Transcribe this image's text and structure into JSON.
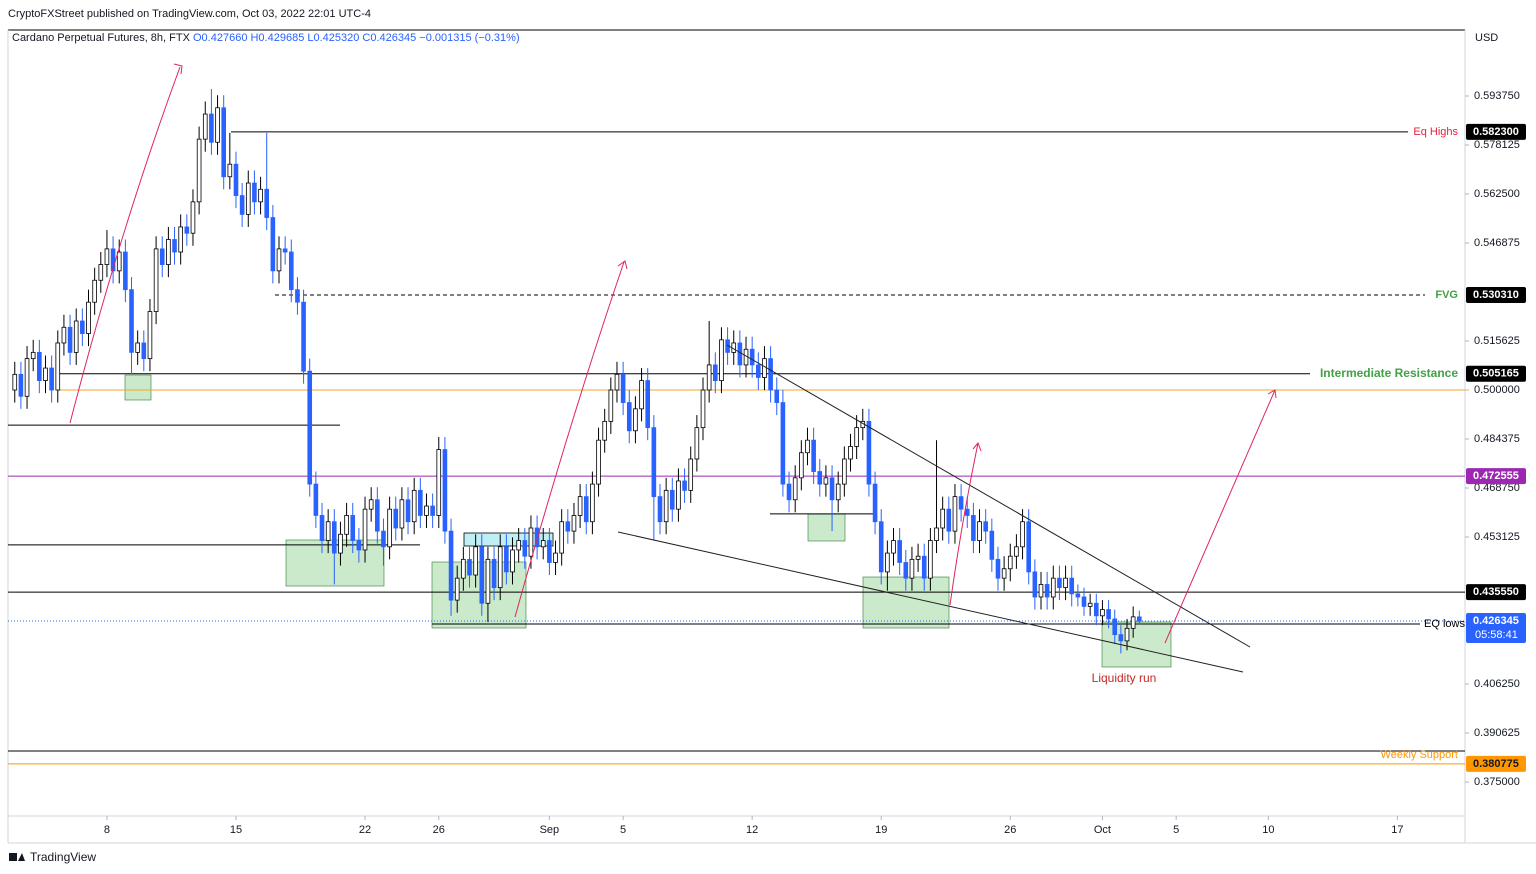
{
  "chart_data": {
    "type": "candlestick",
    "attribution": "CryptoFXStreet published on TradingView.com, Oct 03, 2022 22:01 UTC-4",
    "symbol": "Cardano Perpetual Futures, 8h, FTX",
    "legend_values": "O0.427660 H0.429685 L0.425320 C0.426345 −0.001315 (−0.31%)",
    "currency": "USD",
    "brand": "TradingView",
    "up_color": "#ffffff",
    "down_color": "#2962ff",
    "wick_color": "#000000",
    "xlim": [
      -1.1,
      236
    ],
    "xticks": [
      {
        "value": 15,
        "label": "8"
      },
      {
        "value": 36,
        "label": "15"
      },
      {
        "value": 57,
        "label": "22"
      },
      {
        "value": 69,
        "label": "26"
      },
      {
        "value": 87,
        "label": "Sep"
      },
      {
        "value": 99,
        "label": "5"
      },
      {
        "value": 120,
        "label": "12"
      },
      {
        "value": 141,
        "label": "19"
      },
      {
        "value": 162,
        "label": "26"
      },
      {
        "value": 177,
        "label": "Oct"
      },
      {
        "value": 189,
        "label": "5"
      },
      {
        "value": 204,
        "label": "10"
      },
      {
        "value": 225,
        "label": "17"
      }
    ],
    "ylim": [
      0.36416,
      0.6148
    ],
    "yticks": [
      {
        "value": 0.59375,
        "label": "0.593750"
      },
      {
        "value": 0.578125,
        "label": "0.578125"
      },
      {
        "value": 0.5625,
        "label": "0.562500"
      },
      {
        "value": 0.546875,
        "label": "0.546875"
      },
      {
        "value": 0.515625,
        "label": "0.515625"
      },
      {
        "value": 0.5,
        "label": "0.500000"
      },
      {
        "value": 0.484375,
        "label": "0.484375"
      },
      {
        "value": 0.46875,
        "label": "0.468750"
      },
      {
        "value": 0.453125,
        "label": "0.453125"
      },
      {
        "value": 0.40625,
        "label": "0.406250"
      },
      {
        "value": 0.390625,
        "label": "0.390625"
      },
      {
        "value": 0.375,
        "label": "0.375000"
      }
    ],
    "levels": [
      {
        "value": 0.5823,
        "label": "0.582300",
        "text": "Eq Highs",
        "color": "#000000",
        "text_color": "#e91e3a"
      },
      {
        "value": 0.53031,
        "label": "0.530310",
        "text": "FVG",
        "color": "#000000",
        "text_color": "#43a047",
        "dashed": true
      },
      {
        "value": 0.505165,
        "badge": true,
        "text": "Intermediate Resistance",
        "color": "#000000",
        "text_color": "#43a047"
      },
      {
        "value": 0.5,
        "color": "#f5a623"
      },
      {
        "value": 0.472555,
        "badge": true,
        "color": "#9c27b0"
      },
      {
        "value": 0.43555,
        "label": "0.435550",
        "color": "#000000"
      },
      {
        "value": 0.380775,
        "badge": true,
        "text": "Weekly Support",
        "color": "#ff9800",
        "text_color": "#ff9800"
      },
      {
        "value": 0.3849,
        "color": "#000000"
      },
      {
        "value": 0.4888,
        "color": "#000000"
      },
      {
        "value": 0.4506,
        "color": "#000000"
      },
      {
        "value": 0.4605,
        "color": "#000000"
      },
      {
        "value": 0.4254,
        "text": "EQ lows",
        "color": "#000000",
        "text_color": "#000000"
      }
    ],
    "last_price": {
      "value": 0.426345,
      "countdown": "05:58:41",
      "color": "#2962ff"
    },
    "annotation": "Liquidity run",
    "candles": [
      [
        0.5,
        0.509,
        0.496,
        0.505
      ],
      [
        0.505,
        0.509,
        0.494,
        0.498
      ],
      [
        0.498,
        0.514,
        0.494,
        0.51
      ],
      [
        0.51,
        0.516,
        0.506,
        0.512
      ],
      [
        0.512,
        0.516,
        0.499,
        0.503
      ],
      [
        0.503,
        0.511,
        0.499,
        0.507
      ],
      [
        0.507,
        0.511,
        0.496,
        0.5
      ],
      [
        0.5,
        0.519,
        0.496,
        0.515
      ],
      [
        0.515,
        0.524,
        0.511,
        0.52
      ],
      [
        0.52,
        0.524,
        0.508,
        0.512
      ],
      [
        0.512,
        0.526,
        0.508,
        0.522
      ],
      [
        0.522,
        0.526,
        0.514,
        0.518
      ],
      [
        0.518,
        0.532,
        0.514,
        0.528
      ],
      [
        0.528,
        0.539,
        0.524,
        0.535
      ],
      [
        0.535,
        0.544,
        0.531,
        0.54
      ],
      [
        0.54,
        0.551,
        0.536,
        0.545
      ],
      [
        0.545,
        0.549,
        0.534,
        0.538
      ],
      [
        0.538,
        0.548,
        0.534,
        0.544
      ],
      [
        0.544,
        0.548,
        0.528,
        0.532
      ],
      [
        0.532,
        0.536,
        0.505,
        0.512
      ],
      [
        0.512,
        0.519,
        0.508,
        0.515
      ],
      [
        0.515,
        0.519,
        0.506,
        0.51
      ],
      [
        0.51,
        0.529,
        0.506,
        0.525
      ],
      [
        0.525,
        0.549,
        0.521,
        0.545
      ],
      [
        0.545,
        0.549,
        0.536,
        0.54
      ],
      [
        0.54,
        0.552,
        0.536,
        0.548
      ],
      [
        0.548,
        0.552,
        0.54,
        0.544
      ],
      [
        0.544,
        0.556,
        0.54,
        0.552
      ],
      [
        0.552,
        0.556,
        0.546,
        0.55
      ],
      [
        0.55,
        0.564,
        0.546,
        0.56
      ],
      [
        0.56,
        0.584,
        0.556,
        0.58
      ],
      [
        0.58,
        0.592,
        0.576,
        0.588
      ],
      [
        0.588,
        0.596,
        0.575,
        0.579
      ],
      [
        0.579,
        0.594,
        0.575,
        0.59
      ],
      [
        0.59,
        0.594,
        0.564,
        0.568
      ],
      [
        0.568,
        0.582,
        0.564,
        0.572
      ],
      [
        0.572,
        0.576,
        0.558,
        0.562
      ],
      [
        0.562,
        0.566,
        0.552,
        0.556
      ],
      [
        0.556,
        0.57,
        0.552,
        0.566
      ],
      [
        0.566,
        0.57,
        0.556,
        0.56
      ],
      [
        0.56,
        0.568,
        0.556,
        0.564
      ],
      [
        0.564,
        0.582,
        0.551,
        0.555
      ],
      [
        0.555,
        0.559,
        0.534,
        0.538
      ],
      [
        0.538,
        0.549,
        0.534,
        0.545
      ],
      [
        0.545,
        0.549,
        0.54,
        0.544
      ],
      [
        0.544,
        0.548,
        0.528,
        0.532
      ],
      [
        0.532,
        0.536,
        0.524,
        0.528
      ],
      [
        0.528,
        0.532,
        0.502,
        0.506
      ],
      [
        0.506,
        0.51,
        0.466,
        0.47
      ],
      [
        0.47,
        0.474,
        0.456,
        0.46
      ],
      [
        0.46,
        0.464,
        0.448,
        0.452
      ],
      [
        0.452,
        0.462,
        0.448,
        0.458
      ],
      [
        0.458,
        0.462,
        0.438,
        0.448
      ],
      [
        0.448,
        0.458,
        0.444,
        0.454
      ],
      [
        0.454,
        0.464,
        0.45,
        0.46
      ],
      [
        0.46,
        0.464,
        0.448,
        0.452
      ],
      [
        0.452,
        0.456,
        0.445,
        0.449
      ],
      [
        0.449,
        0.466,
        0.445,
        0.462
      ],
      [
        0.462,
        0.469,
        0.458,
        0.465
      ],
      [
        0.465,
        0.469,
        0.451,
        0.455
      ],
      [
        0.455,
        0.459,
        0.444,
        0.45
      ],
      [
        0.45,
        0.466,
        0.446,
        0.462
      ],
      [
        0.462,
        0.466,
        0.452,
        0.456
      ],
      [
        0.456,
        0.469,
        0.452,
        0.465
      ],
      [
        0.465,
        0.469,
        0.454,
        0.458
      ],
      [
        0.458,
        0.472,
        0.454,
        0.468
      ],
      [
        0.468,
        0.472,
        0.456,
        0.46
      ],
      [
        0.46,
        0.467,
        0.456,
        0.463
      ],
      [
        0.463,
        0.467,
        0.456,
        0.46
      ],
      [
        0.46,
        0.485,
        0.456,
        0.481
      ],
      [
        0.481,
        0.485,
        0.451,
        0.455
      ],
      [
        0.455,
        0.459,
        0.428,
        0.433
      ],
      [
        0.433,
        0.444,
        0.429,
        0.44
      ],
      [
        0.44,
        0.45,
        0.436,
        0.446
      ],
      [
        0.446,
        0.45,
        0.437,
        0.441
      ],
      [
        0.441,
        0.454,
        0.437,
        0.45
      ],
      [
        0.45,
        0.454,
        0.428,
        0.432
      ],
      [
        0.432,
        0.45,
        0.426,
        0.446
      ],
      [
        0.446,
        0.45,
        0.433,
        0.437
      ],
      [
        0.437,
        0.454,
        0.433,
        0.45
      ],
      [
        0.45,
        0.454,
        0.438,
        0.442
      ],
      [
        0.442,
        0.453,
        0.438,
        0.449
      ],
      [
        0.449,
        0.456,
        0.445,
        0.452
      ],
      [
        0.452,
        0.456,
        0.443,
        0.447
      ],
      [
        0.447,
        0.46,
        0.443,
        0.456
      ],
      [
        0.456,
        0.46,
        0.446,
        0.45
      ],
      [
        0.45,
        0.456,
        0.446,
        0.452
      ],
      [
        0.452,
        0.456,
        0.441,
        0.445
      ],
      [
        0.445,
        0.452,
        0.441,
        0.448
      ],
      [
        0.448,
        0.462,
        0.444,
        0.458
      ],
      [
        0.458,
        0.462,
        0.451,
        0.455
      ],
      [
        0.455,
        0.464,
        0.451,
        0.46
      ],
      [
        0.46,
        0.47,
        0.456,
        0.466
      ],
      [
        0.466,
        0.47,
        0.454,
        0.458
      ],
      [
        0.458,
        0.474,
        0.454,
        0.47
      ],
      [
        0.47,
        0.488,
        0.466,
        0.484
      ],
      [
        0.484,
        0.494,
        0.48,
        0.49
      ],
      [
        0.49,
        0.504,
        0.486,
        0.5
      ],
      [
        0.5,
        0.509,
        0.496,
        0.505
      ],
      [
        0.505,
        0.509,
        0.492,
        0.496
      ],
      [
        0.496,
        0.5,
        0.483,
        0.487
      ],
      [
        0.487,
        0.498,
        0.483,
        0.494
      ],
      [
        0.494,
        0.507,
        0.49,
        0.503
      ],
      [
        0.503,
        0.507,
        0.484,
        0.488
      ],
      [
        0.488,
        0.492,
        0.452,
        0.466
      ],
      [
        0.466,
        0.47,
        0.454,
        0.458
      ],
      [
        0.458,
        0.472,
        0.454,
        0.468
      ],
      [
        0.468,
        0.472,
        0.458,
        0.462
      ],
      [
        0.462,
        0.475,
        0.458,
        0.471
      ],
      [
        0.471,
        0.475,
        0.464,
        0.468
      ],
      [
        0.468,
        0.482,
        0.464,
        0.478
      ],
      [
        0.478,
        0.492,
        0.474,
        0.488
      ],
      [
        0.488,
        0.504,
        0.484,
        0.5
      ],
      [
        0.5,
        0.522,
        0.496,
        0.508
      ],
      [
        0.508,
        0.512,
        0.499,
        0.503
      ],
      [
        0.503,
        0.52,
        0.499,
        0.516
      ],
      [
        0.516,
        0.52,
        0.508,
        0.512
      ],
      [
        0.512,
        0.519,
        0.508,
        0.515
      ],
      [
        0.515,
        0.519,
        0.504,
        0.508
      ],
      [
        0.508,
        0.517,
        0.504,
        0.513
      ],
      [
        0.513,
        0.517,
        0.504,
        0.508
      ],
      [
        0.508,
        0.512,
        0.5,
        0.504
      ],
      [
        0.504,
        0.514,
        0.5,
        0.51
      ],
      [
        0.51,
        0.514,
        0.496,
        0.5
      ],
      [
        0.5,
        0.504,
        0.492,
        0.496
      ],
      [
        0.496,
        0.5,
        0.466,
        0.47
      ],
      [
        0.47,
        0.474,
        0.461,
        0.465
      ],
      [
        0.465,
        0.476,
        0.461,
        0.472
      ],
      [
        0.472,
        0.484,
        0.468,
        0.48
      ],
      [
        0.48,
        0.488,
        0.476,
        0.484
      ],
      [
        0.484,
        0.488,
        0.47,
        0.474
      ],
      [
        0.474,
        0.478,
        0.466,
        0.47
      ],
      [
        0.47,
        0.476,
        0.466,
        0.472
      ],
      [
        0.472,
        0.476,
        0.455,
        0.465
      ],
      [
        0.465,
        0.474,
        0.461,
        0.47
      ],
      [
        0.47,
        0.482,
        0.466,
        0.478
      ],
      [
        0.478,
        0.486,
        0.474,
        0.482
      ],
      [
        0.482,
        0.492,
        0.478,
        0.488
      ],
      [
        0.488,
        0.494,
        0.484,
        0.49
      ],
      [
        0.49,
        0.494,
        0.466,
        0.47
      ],
      [
        0.47,
        0.474,
        0.454,
        0.458
      ],
      [
        0.458,
        0.462,
        0.438,
        0.442
      ],
      [
        0.442,
        0.452,
        0.436,
        0.448
      ],
      [
        0.448,
        0.456,
        0.444,
        0.452
      ],
      [
        0.452,
        0.456,
        0.441,
        0.445
      ],
      [
        0.445,
        0.449,
        0.436,
        0.44
      ],
      [
        0.44,
        0.45,
        0.436,
        0.446
      ],
      [
        0.446,
        0.451,
        0.442,
        0.447
      ],
      [
        0.447,
        0.451,
        0.436,
        0.44
      ],
      [
        0.44,
        0.456,
        0.436,
        0.452
      ],
      [
        0.452,
        0.484,
        0.448,
        0.456
      ],
      [
        0.456,
        0.466,
        0.452,
        0.462
      ],
      [
        0.462,
        0.466,
        0.451,
        0.455
      ],
      [
        0.455,
        0.47,
        0.451,
        0.466
      ],
      [
        0.466,
        0.47,
        0.458,
        0.462
      ],
      [
        0.462,
        0.466,
        0.456,
        0.46
      ],
      [
        0.46,
        0.464,
        0.448,
        0.452
      ],
      [
        0.452,
        0.462,
        0.448,
        0.458
      ],
      [
        0.458,
        0.462,
        0.451,
        0.455
      ],
      [
        0.455,
        0.459,
        0.442,
        0.446
      ],
      [
        0.446,
        0.45,
        0.436,
        0.44
      ],
      [
        0.44,
        0.447,
        0.436,
        0.443
      ],
      [
        0.443,
        0.451,
        0.439,
        0.447
      ],
      [
        0.447,
        0.454,
        0.443,
        0.45
      ],
      [
        0.45,
        0.462,
        0.446,
        0.458
      ],
      [
        0.458,
        0.462,
        0.438,
        0.442
      ],
      [
        0.442,
        0.446,
        0.43,
        0.434
      ],
      [
        0.434,
        0.442,
        0.43,
        0.438
      ],
      [
        0.438,
        0.442,
        0.43,
        0.434
      ],
      [
        0.434,
        0.444,
        0.43,
        0.44
      ],
      [
        0.44,
        0.444,
        0.433,
        0.437
      ],
      [
        0.437,
        0.444,
        0.433,
        0.44
      ],
      [
        0.44,
        0.444,
        0.431,
        0.435
      ],
      [
        0.435,
        0.438,
        0.431,
        0.434
      ],
      [
        0.434,
        0.437,
        0.428,
        0.431
      ],
      [
        0.431,
        0.435,
        0.428,
        0.432
      ],
      [
        0.432,
        0.435,
        0.425,
        0.428
      ],
      [
        0.428,
        0.433,
        0.425,
        0.43
      ],
      [
        0.43,
        0.433,
        0.424,
        0.427
      ],
      [
        0.427,
        0.43,
        0.419,
        0.422
      ],
      [
        0.422,
        0.425,
        0.416,
        0.42
      ],
      [
        0.42,
        0.427,
        0.417,
        0.424
      ],
      [
        0.424,
        0.431,
        0.421,
        0.42766
      ],
      [
        0.42766,
        0.429685,
        0.42532,
        0.426345
      ]
    ]
  }
}
